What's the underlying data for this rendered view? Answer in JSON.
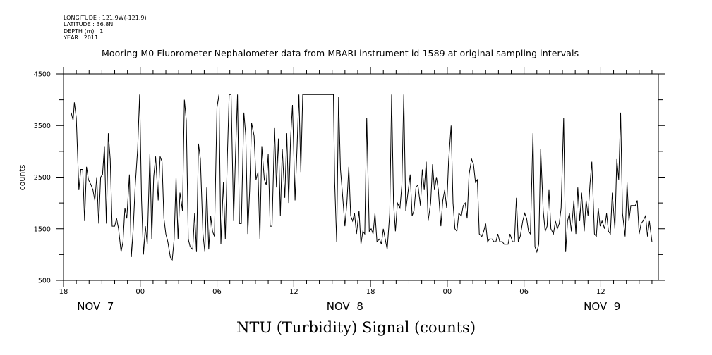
{
  "metadata": {
    "longitude": "LONGITUDE : 121.9W(-121.9)",
    "latitude": "LATITUDE : 36.8N",
    "depth": "DEPTH (m) : 1",
    "year": "YEAR : 2011"
  },
  "chart_data": {
    "type": "line",
    "title": "Mooring M0 Fluorometer-Nephalometer data from MBARI instrument id 1589 at original sampling intervals",
    "xlabel": "NTU (Turbidity) Signal (counts)",
    "ylabel": "counts",
    "x_unit": "hours since 2011-11-07 18:00",
    "xlim": [
      0,
      46.5
    ],
    "ylim": [
      500,
      4500
    ],
    "y_ticks": [
      "4500.",
      "3500.",
      "2500.",
      "1500.",
      "500."
    ],
    "y_tick_values": [
      4500,
      3500,
      2500,
      1500,
      500
    ],
    "x_ticks": [
      {
        "label": "18",
        "x": 0
      },
      {
        "label": "00",
        "x": 6
      },
      {
        "label": "06",
        "x": 12
      },
      {
        "label": "12",
        "x": 18
      },
      {
        "label": "18",
        "x": 24
      },
      {
        "label": "00",
        "x": 30
      },
      {
        "label": "06",
        "x": 36
      },
      {
        "label": "12",
        "x": 42
      }
    ],
    "date_labels": [
      {
        "label": "NOV  7",
        "x": 2.5
      },
      {
        "label": "NOV  8",
        "x": 22.0
      },
      {
        "label": "NOV  9",
        "x": 42.1
      }
    ],
    "series": [
      {
        "values": [
          [
            0.6,
            3750
          ],
          [
            0.75,
            3600
          ],
          [
            0.85,
            3950
          ],
          [
            1.0,
            3650
          ],
          [
            1.2,
            2250
          ],
          [
            1.35,
            2650
          ],
          [
            1.5,
            2650
          ],
          [
            1.65,
            1650
          ],
          [
            1.8,
            2700
          ],
          [
            1.95,
            2450
          ],
          [
            2.15,
            2350
          ],
          [
            2.3,
            2250
          ],
          [
            2.45,
            2050
          ],
          [
            2.6,
            2500
          ],
          [
            2.75,
            1600
          ],
          [
            2.9,
            2500
          ],
          [
            3.05,
            2550
          ],
          [
            3.2,
            3100
          ],
          [
            3.35,
            1600
          ],
          [
            3.5,
            3350
          ],
          [
            3.65,
            2850
          ],
          [
            3.8,
            1550
          ],
          [
            4.0,
            1550
          ],
          [
            4.15,
            1700
          ],
          [
            4.3,
            1500
          ],
          [
            4.5,
            1050
          ],
          [
            4.65,
            1250
          ],
          [
            4.8,
            1900
          ],
          [
            4.95,
            1700
          ],
          [
            5.15,
            2550
          ],
          [
            5.3,
            950
          ],
          [
            5.45,
            1500
          ],
          [
            5.6,
            2300
          ],
          [
            5.8,
            3050
          ],
          [
            5.95,
            4100
          ],
          [
            6.1,
            2050
          ],
          [
            6.25,
            1000
          ],
          [
            6.4,
            1550
          ],
          [
            6.55,
            1200
          ],
          [
            6.75,
            2950
          ],
          [
            6.9,
            1300
          ],
          [
            7.05,
            2500
          ],
          [
            7.2,
            2900
          ],
          [
            7.4,
            2050
          ],
          [
            7.55,
            2900
          ],
          [
            7.7,
            2800
          ],
          [
            7.85,
            1700
          ],
          [
            8.0,
            1400
          ],
          [
            8.15,
            1250
          ],
          [
            8.35,
            950
          ],
          [
            8.5,
            900
          ],
          [
            8.65,
            1300
          ],
          [
            8.8,
            2500
          ],
          [
            8.95,
            1300
          ],
          [
            9.1,
            2200
          ],
          [
            9.3,
            1850
          ],
          [
            9.45,
            4000
          ],
          [
            9.6,
            3600
          ],
          [
            9.75,
            1300
          ],
          [
            9.9,
            1150
          ],
          [
            10.1,
            1100
          ],
          [
            10.25,
            1800
          ],
          [
            10.4,
            1050
          ],
          [
            10.55,
            3150
          ],
          [
            10.7,
            2850
          ],
          [
            10.9,
            1400
          ],
          [
            11.05,
            1050
          ],
          [
            11.2,
            2300
          ],
          [
            11.35,
            1100
          ],
          [
            11.5,
            1750
          ],
          [
            11.65,
            1450
          ],
          [
            11.8,
            1350
          ],
          [
            12.0,
            3850
          ],
          [
            12.15,
            4100
          ],
          [
            12.3,
            1200
          ],
          [
            12.5,
            2400
          ],
          [
            12.65,
            1300
          ],
          [
            12.8,
            2850
          ],
          [
            12.95,
            4100
          ],
          [
            13.1,
            4100
          ],
          [
            13.3,
            1650
          ],
          [
            13.45,
            2950
          ],
          [
            13.6,
            4100
          ],
          [
            13.75,
            1600
          ],
          [
            13.9,
            1600
          ],
          [
            14.1,
            3750
          ],
          [
            14.25,
            3300
          ],
          [
            14.4,
            1400
          ],
          [
            14.55,
            2250
          ],
          [
            14.7,
            3550
          ],
          [
            14.9,
            3300
          ],
          [
            15.05,
            2450
          ],
          [
            15.2,
            2600
          ],
          [
            15.35,
            1300
          ],
          [
            15.5,
            3100
          ],
          [
            15.7,
            2450
          ],
          [
            15.85,
            2350
          ],
          [
            16.0,
            2950
          ],
          [
            16.15,
            1550
          ],
          [
            16.3,
            1550
          ],
          [
            16.5,
            3450
          ],
          [
            16.65,
            2300
          ],
          [
            16.8,
            3250
          ],
          [
            16.95,
            1750
          ],
          [
            17.1,
            3050
          ],
          [
            17.3,
            2100
          ],
          [
            17.45,
            3350
          ],
          [
            17.6,
            2000
          ],
          [
            17.75,
            3250
          ],
          [
            17.9,
            3900
          ],
          [
            18.1,
            2050
          ],
          [
            18.25,
            3050
          ],
          [
            18.4,
            4100
          ],
          [
            18.55,
            2600
          ],
          [
            18.7,
            4100
          ],
          [
            18.85,
            4100
          ],
          [
            19.7,
            4100
          ],
          [
            19.8,
            4100
          ],
          [
            20.4,
            4100
          ],
          [
            20.5,
            4100
          ],
          [
            21.1,
            4100
          ],
          [
            21.2,
            2400
          ],
          [
            21.35,
            1250
          ],
          [
            21.5,
            4050
          ],
          [
            21.65,
            2650
          ],
          [
            21.8,
            2200
          ],
          [
            22.0,
            1550
          ],
          [
            22.15,
            2000
          ],
          [
            22.3,
            2700
          ],
          [
            22.45,
            1750
          ],
          [
            22.6,
            1650
          ],
          [
            22.75,
            1800
          ],
          [
            22.9,
            1400
          ],
          [
            23.1,
            1850
          ],
          [
            23.25,
            1200
          ],
          [
            23.4,
            1450
          ],
          [
            23.55,
            1400
          ],
          [
            23.7,
            3650
          ],
          [
            23.9,
            1450
          ],
          [
            24.05,
            1500
          ],
          [
            24.2,
            1400
          ],
          [
            24.35,
            1800
          ],
          [
            24.5,
            1250
          ],
          [
            24.7,
            1300
          ],
          [
            24.85,
            1200
          ],
          [
            25.0,
            1500
          ],
          [
            25.15,
            1300
          ],
          [
            25.3,
            1100
          ],
          [
            25.5,
            1800
          ],
          [
            25.65,
            4100
          ],
          [
            25.8,
            2000
          ],
          [
            25.95,
            1450
          ],
          [
            26.1,
            2000
          ],
          [
            26.3,
            1900
          ],
          [
            26.45,
            2350
          ],
          [
            26.6,
            4100
          ],
          [
            26.75,
            1850
          ],
          [
            26.9,
            2150
          ],
          [
            27.1,
            2550
          ],
          [
            27.25,
            1750
          ],
          [
            27.4,
            1850
          ],
          [
            27.55,
            2300
          ],
          [
            27.7,
            2350
          ],
          [
            27.9,
            1950
          ],
          [
            28.05,
            2650
          ],
          [
            28.2,
            2250
          ],
          [
            28.35,
            2800
          ],
          [
            28.5,
            1650
          ],
          [
            28.7,
            2000
          ],
          [
            28.85,
            2750
          ],
          [
            29.0,
            2250
          ],
          [
            29.15,
            2500
          ],
          [
            29.3,
            2250
          ],
          [
            29.5,
            1550
          ],
          [
            29.65,
            2050
          ],
          [
            29.8,
            2250
          ],
          [
            29.95,
            1900
          ],
          [
            30.1,
            2800
          ],
          [
            30.3,
            3500
          ],
          [
            30.45,
            2000
          ],
          [
            30.6,
            1500
          ],
          [
            30.75,
            1450
          ],
          [
            30.9,
            1800
          ],
          [
            31.1,
            1750
          ],
          [
            31.25,
            1950
          ],
          [
            31.4,
            2000
          ],
          [
            31.55,
            1700
          ],
          [
            31.7,
            2550
          ],
          [
            31.9,
            2850
          ],
          [
            32.05,
            2750
          ],
          [
            32.2,
            2400
          ],
          [
            32.35,
            2450
          ],
          [
            32.5,
            1400
          ],
          [
            32.7,
            1350
          ],
          [
            32.85,
            1450
          ],
          [
            33.0,
            1600
          ],
          [
            33.15,
            1250
          ],
          [
            33.3,
            1300
          ],
          [
            33.5,
            1300
          ],
          [
            33.65,
            1250
          ],
          [
            33.8,
            1250
          ],
          [
            33.95,
            1400
          ],
          [
            34.1,
            1250
          ],
          [
            34.3,
            1250
          ],
          [
            34.45,
            1200
          ],
          [
            34.6,
            1200
          ],
          [
            34.75,
            1200
          ],
          [
            34.9,
            1400
          ],
          [
            35.1,
            1250
          ],
          [
            35.25,
            1250
          ],
          [
            35.4,
            2100
          ],
          [
            35.55,
            1250
          ],
          [
            35.7,
            1350
          ],
          [
            35.9,
            1650
          ],
          [
            36.05,
            1800
          ],
          [
            36.2,
            1700
          ],
          [
            36.35,
            1450
          ],
          [
            36.5,
            1400
          ],
          [
            36.7,
            3350
          ],
          [
            36.85,
            1150
          ],
          [
            37.0,
            1050
          ],
          [
            37.15,
            1200
          ],
          [
            37.3,
            3050
          ],
          [
            37.5,
            1850
          ],
          [
            37.65,
            1450
          ],
          [
            37.8,
            1550
          ],
          [
            37.95,
            2250
          ],
          [
            38.1,
            1500
          ],
          [
            38.3,
            1400
          ],
          [
            38.45,
            1650
          ],
          [
            38.6,
            1500
          ],
          [
            38.75,
            1600
          ],
          [
            38.9,
            1900
          ],
          [
            39.1,
            3650
          ],
          [
            39.25,
            1050
          ],
          [
            39.4,
            1650
          ],
          [
            39.55,
            1800
          ],
          [
            39.7,
            1450
          ],
          [
            39.9,
            2050
          ],
          [
            40.05,
            1400
          ],
          [
            40.2,
            2300
          ],
          [
            40.35,
            1650
          ],
          [
            40.5,
            2200
          ],
          [
            40.7,
            1450
          ],
          [
            40.85,
            2050
          ],
          [
            41.0,
            1750
          ],
          [
            41.15,
            2350
          ],
          [
            41.3,
            2800
          ],
          [
            41.5,
            1400
          ],
          [
            41.65,
            1350
          ],
          [
            41.8,
            1900
          ],
          [
            41.95,
            1550
          ],
          [
            42.1,
            1650
          ],
          [
            42.3,
            1500
          ],
          [
            42.45,
            1800
          ],
          [
            42.6,
            1450
          ],
          [
            42.75,
            1400
          ],
          [
            42.9,
            2200
          ],
          [
            43.1,
            1500
          ],
          [
            43.25,
            2850
          ],
          [
            43.4,
            2450
          ],
          [
            43.55,
            3750
          ],
          [
            43.7,
            1800
          ],
          [
            43.9,
            1350
          ],
          [
            44.05,
            2400
          ],
          [
            44.2,
            1650
          ],
          [
            44.35,
            1950
          ],
          [
            44.5,
            1950
          ],
          [
            44.7,
            1950
          ],
          [
            44.85,
            2050
          ],
          [
            45.0,
            1400
          ],
          [
            45.15,
            1600
          ],
          [
            45.3,
            1650
          ],
          [
            45.5,
            1750
          ],
          [
            45.65,
            1350
          ],
          [
            45.8,
            1650
          ],
          [
            46.0,
            1250
          ]
        ]
      }
    ]
  }
}
